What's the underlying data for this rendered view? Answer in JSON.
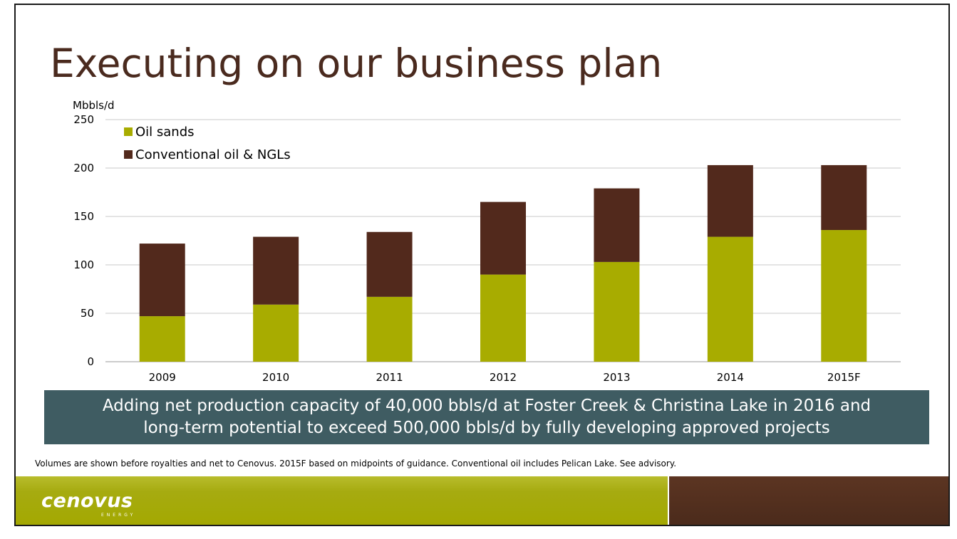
{
  "slide": {
    "title": "Executing on our business plan",
    "callout_lines": [
      "Adding net production capacity of 40,000 bbls/d at Foster Creek & Christina Lake in 2016 and",
      "long-term potential to exceed 500,000 bbls/d by fully developing approved projects"
    ],
    "footnote": "Volumes are shown before royalties and net to Cenovus. 2015F based on midpoints of guidance. Conventional oil includes Pelican Lake. See advisory.",
    "logo_text": "cenovus",
    "logo_subtext": "ENERGY"
  },
  "colors": {
    "oil_sands": "#a8ac00",
    "conventional": "#52291c",
    "title": "#4a2a1e",
    "callout_bg": "#3f5c62"
  },
  "chart_data": {
    "type": "bar",
    "stacked": true,
    "categories": [
      "2009",
      "2010",
      "2011",
      "2012",
      "2013",
      "2014",
      "2015F"
    ],
    "series": [
      {
        "name": "Oil sands",
        "values": [
          47,
          59,
          67,
          90,
          103,
          129,
          136
        ]
      },
      {
        "name": "Conventional oil & NGLs",
        "values": [
          75,
          70,
          67,
          75,
          76,
          74,
          67
        ]
      }
    ],
    "ylabel": "Mbbls/d",
    "ylim": [
      0,
      250
    ],
    "yticks": [
      0,
      50,
      100,
      150,
      200,
      250
    ],
    "grid": true,
    "legend": "top-left"
  }
}
